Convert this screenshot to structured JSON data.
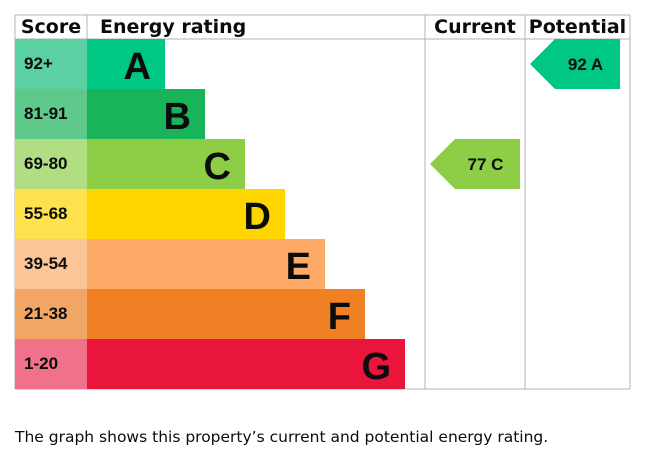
{
  "chart_data": {
    "type": "table",
    "headers": {
      "score": "Score",
      "rating": "Energy rating",
      "current": "Current",
      "potential": "Potential"
    },
    "bands": [
      {
        "letter": "A",
        "range": "92+",
        "color": "#00c781",
        "score_color": "#5bd0a2"
      },
      {
        "letter": "B",
        "range": "81-91",
        "color": "#19b459",
        "score_color": "#5ec98a"
      },
      {
        "letter": "C",
        "range": "69-80",
        "color": "#8dce46",
        "score_color": "#b1de82"
      },
      {
        "letter": "D",
        "range": "55-68",
        "color": "#ffd500",
        "score_color": "#fde24d"
      },
      {
        "letter": "E",
        "range": "39-54",
        "color": "#fcaa65",
        "score_color": "#fcc597"
      },
      {
        "letter": "F",
        "range": "21-38",
        "color": "#ef8023",
        "score_color": "#f2a666"
      },
      {
        "letter": "G",
        "range": "1-20",
        "color": "#e9153b",
        "score_color": "#f0728a"
      }
    ],
    "current": {
      "value": 77,
      "band": "C",
      "label": "77  C",
      "color": "#8dce46"
    },
    "potential": {
      "value": 92,
      "band": "A",
      "label": "92  A",
      "color": "#00c781"
    }
  },
  "caption": "The graph shows this property’s current and potential energy rating."
}
